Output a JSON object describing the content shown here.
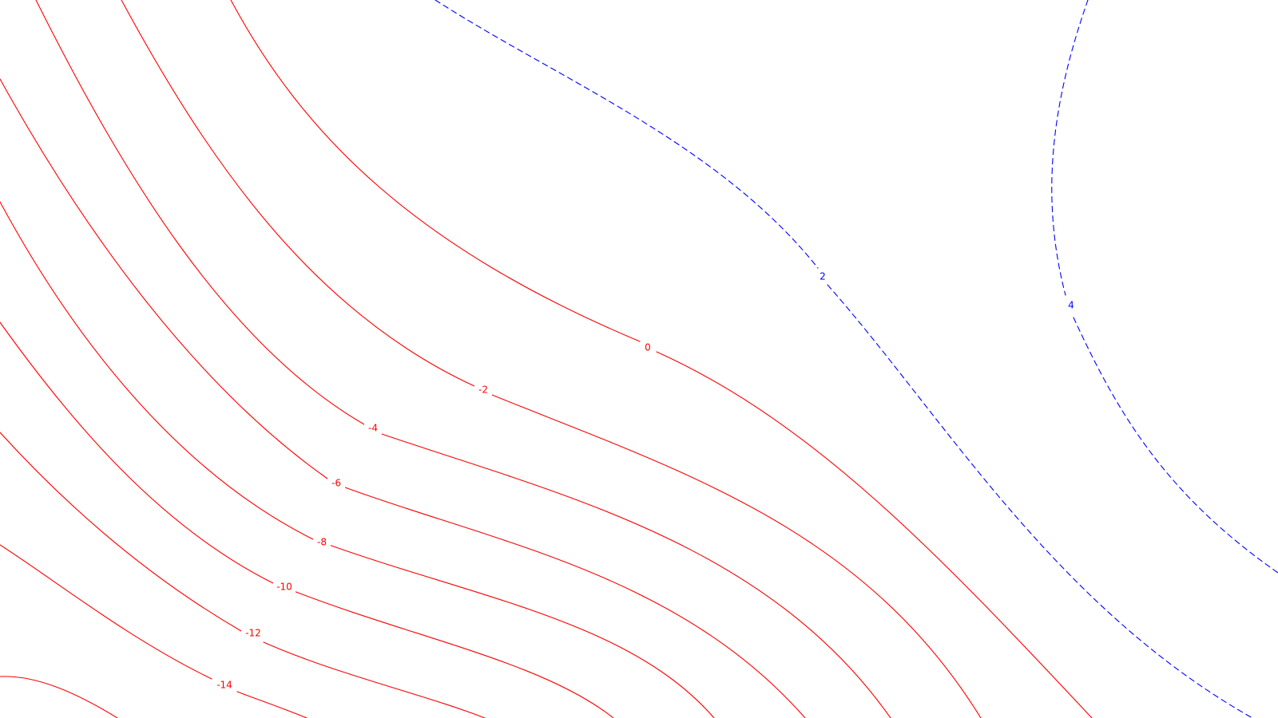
{
  "map": {
    "background_color": "#ffffff",
    "line_colors": {
      "negative": "#ff0000",
      "positive": "#0000ff"
    },
    "line_styles": {
      "negative": "solid",
      "positive": "dashed"
    },
    "contours": [
      {
        "level": "-14",
        "sign": "negative"
      },
      {
        "level": "-12",
        "sign": "negative"
      },
      {
        "level": "-10",
        "sign": "negative"
      },
      {
        "level": "-8",
        "sign": "negative"
      },
      {
        "level": "-6",
        "sign": "negative"
      },
      {
        "level": "-4",
        "sign": "negative"
      },
      {
        "level": "-2",
        "sign": "negative"
      },
      {
        "level": "0",
        "sign": "negative"
      },
      {
        "level": "2",
        "sign": "positive"
      },
      {
        "level": "4",
        "sign": "positive"
      }
    ]
  }
}
